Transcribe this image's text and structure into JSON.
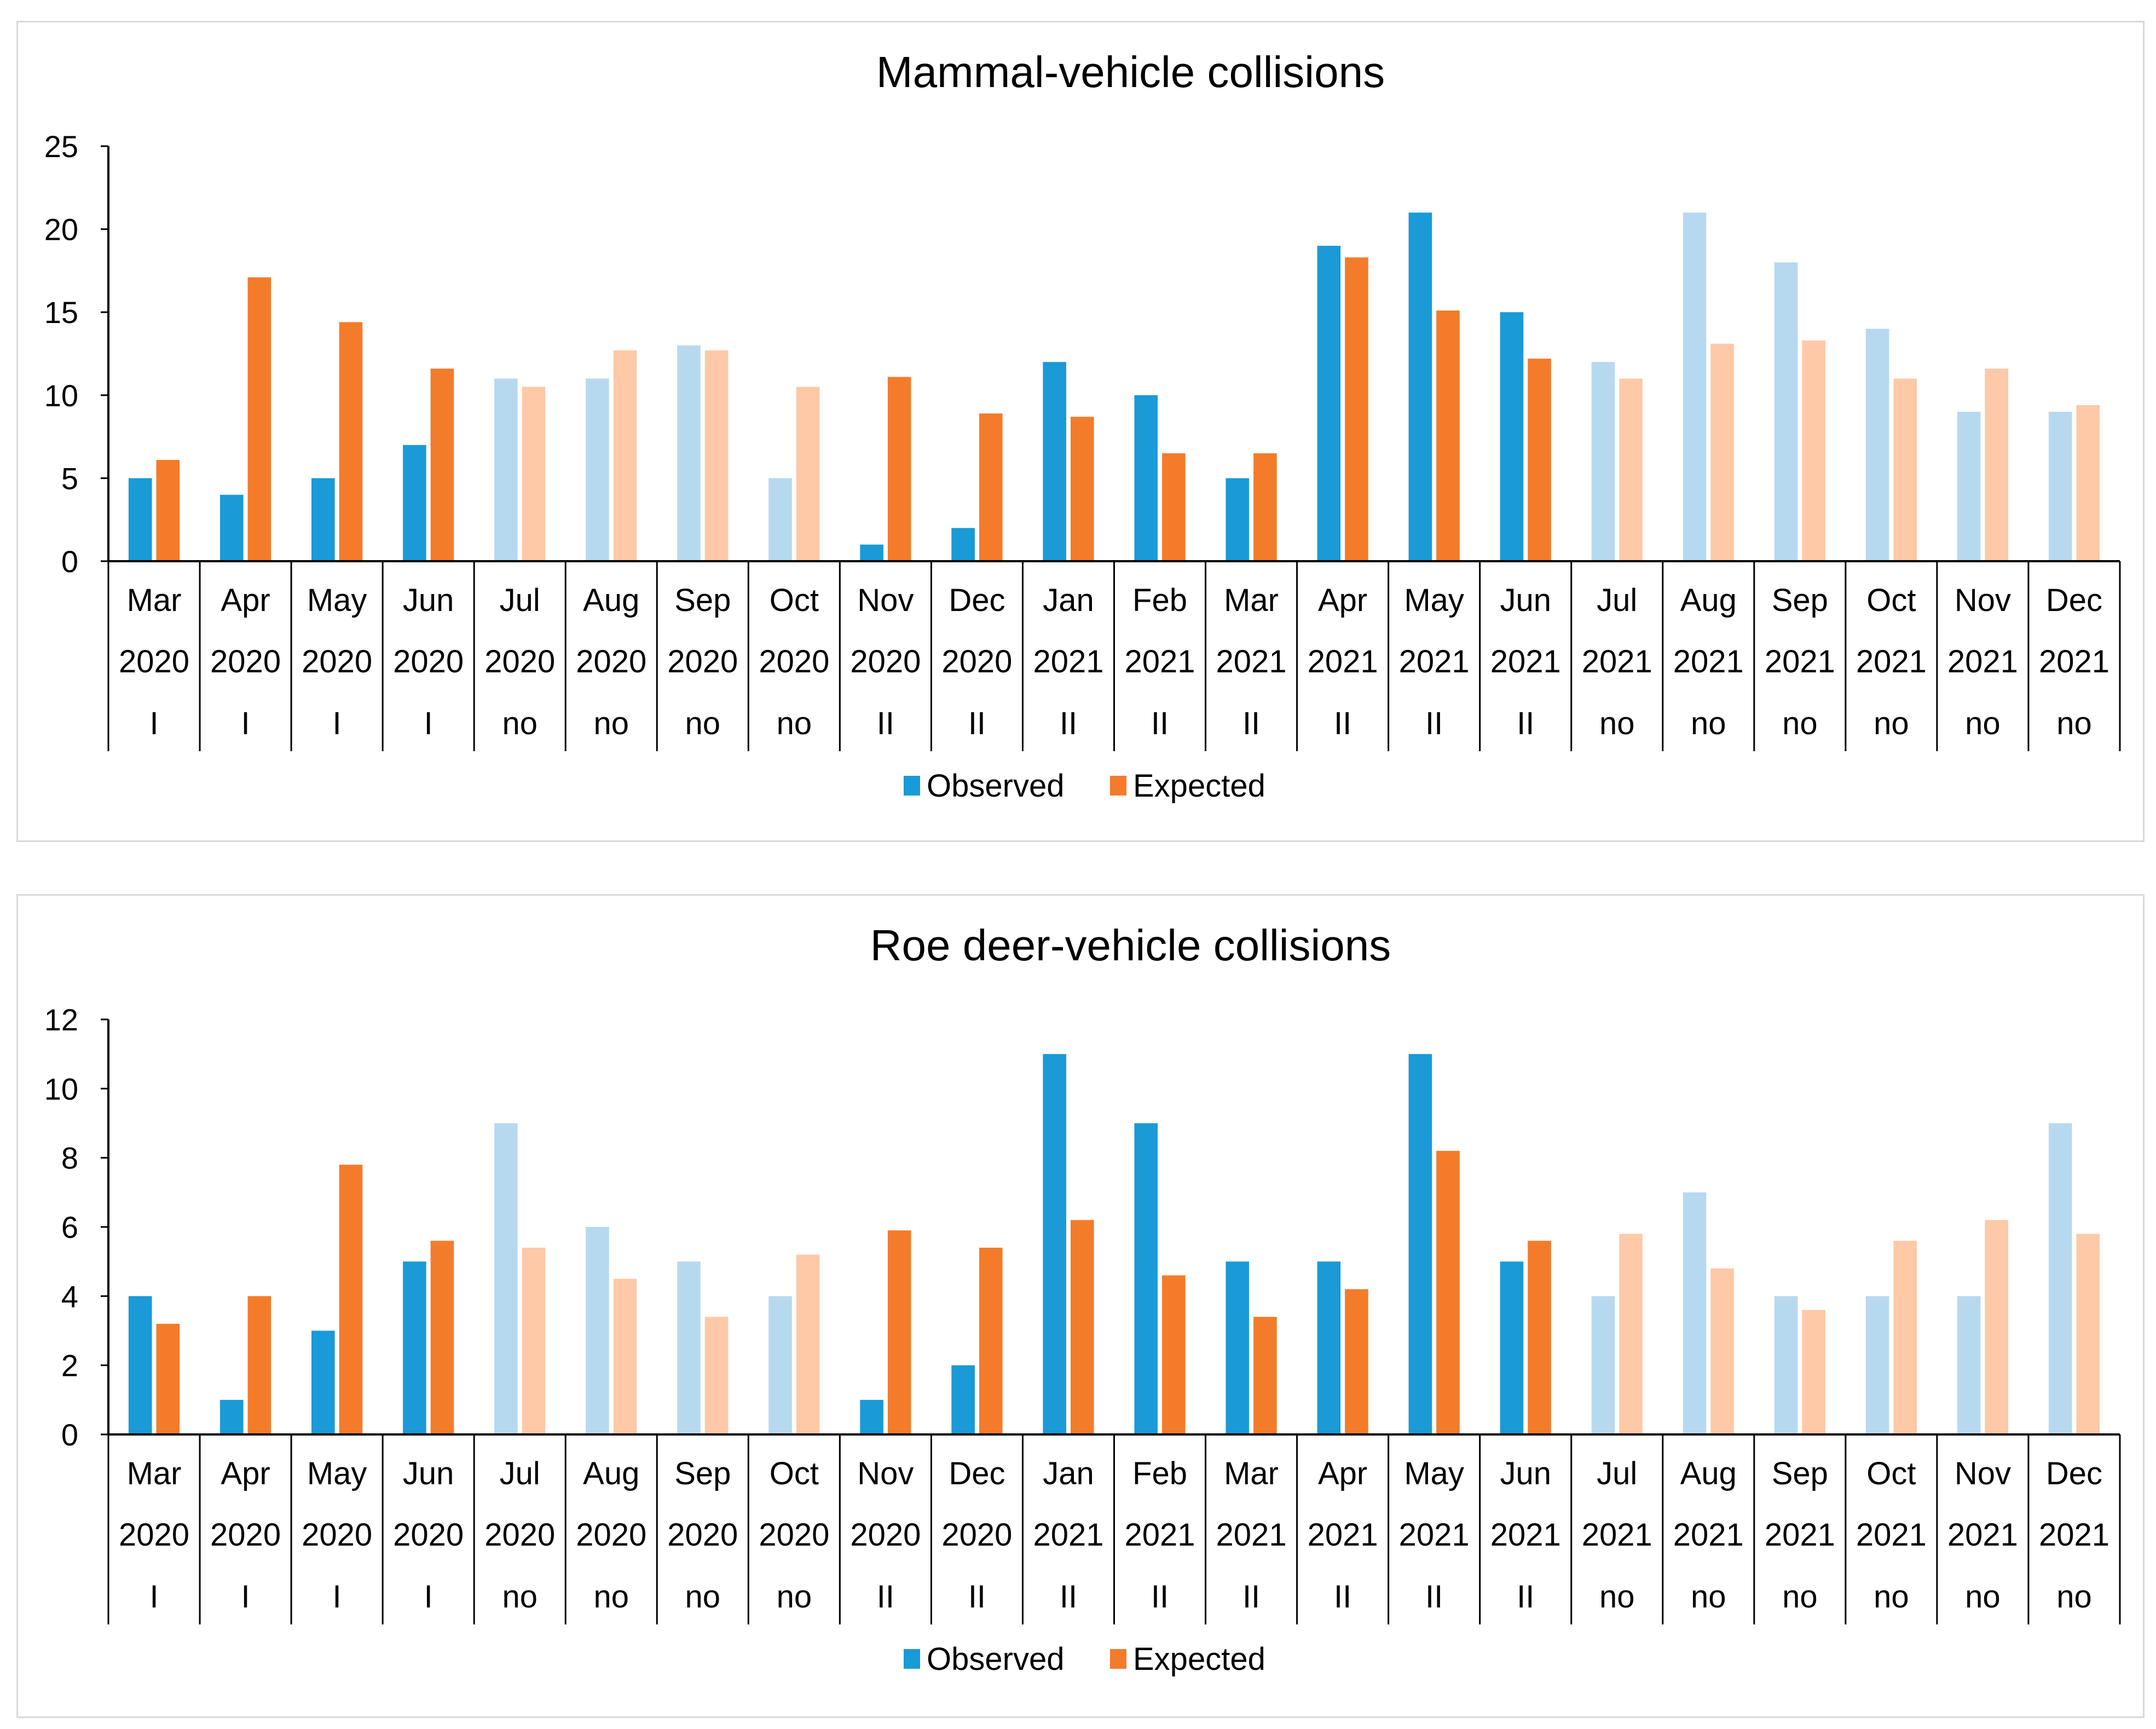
{
  "chart_data": [
    {
      "type": "bar",
      "title": "Mammal-vehicle collisions",
      "xlabel": "",
      "ylabel": "",
      "ylim": [
        0,
        25
      ],
      "yticks": [
        0,
        5,
        10,
        15,
        20,
        25
      ],
      "yticks_text": [
        "0",
        "5",
        "10",
        "15",
        "20",
        "25"
      ],
      "grid": false,
      "legend_position": "bottom",
      "months": [
        "Mar",
        "Apr",
        "May",
        "Jun",
        "Jul",
        "Aug",
        "Sep",
        "Oct",
        "Nov",
        "Dec",
        "Jan",
        "Feb",
        "Mar",
        "Apr",
        "May",
        "Jun",
        "Jul",
        "Aug",
        "Sep",
        "Oct",
        "Nov",
        "Dec"
      ],
      "years": [
        "2020",
        "2020",
        "2020",
        "2020",
        "2020",
        "2020",
        "2020",
        "2020",
        "2020",
        "2020",
        "2021",
        "2021",
        "2021",
        "2021",
        "2021",
        "2021",
        "2021",
        "2021",
        "2021",
        "2021",
        "2021",
        "2021"
      ],
      "lockdown": [
        "I",
        "I",
        "I",
        "I",
        "no",
        "no",
        "no",
        "no",
        "II",
        "II",
        "II",
        "II",
        "II",
        "II",
        "II",
        "II",
        "no",
        "no",
        "no",
        "no",
        "no",
        "no"
      ],
      "series": [
        {
          "name": "Observed",
          "values": [
            5,
            4,
            5,
            7,
            11,
            11,
            13,
            5,
            1,
            2,
            12,
            10,
            5,
            19,
            21,
            15,
            12,
            21,
            18,
            14,
            9,
            9
          ]
        },
        {
          "name": "Expected",
          "values": [
            6.1,
            17.1,
            14.4,
            11.6,
            10.5,
            12.7,
            12.7,
            10.5,
            11.1,
            8.9,
            8.7,
            6.5,
            6.5,
            18.3,
            15.1,
            12.2,
            11.0,
            13.1,
            13.3,
            11.0,
            11.6,
            9.4
          ]
        }
      ]
    },
    {
      "type": "bar",
      "title": "Roe deer-vehicle collisions",
      "xlabel": "",
      "ylabel": "",
      "ylim": [
        0,
        12
      ],
      "yticks": [
        0,
        2,
        4,
        6,
        8,
        10,
        12
      ],
      "yticks_text": [
        "0",
        "2",
        "4",
        "6",
        "8",
        "10",
        "12"
      ],
      "grid": false,
      "legend_position": "bottom",
      "months": [
        "Mar",
        "Apr",
        "May",
        "Jun",
        "Jul",
        "Aug",
        "Sep",
        "Oct",
        "Nov",
        "Dec",
        "Jan",
        "Feb",
        "Mar",
        "Apr",
        "May",
        "Jun",
        "Jul",
        "Aug",
        "Sep",
        "Oct",
        "Nov",
        "Dec"
      ],
      "years": [
        "2020",
        "2020",
        "2020",
        "2020",
        "2020",
        "2020",
        "2020",
        "2020",
        "2020",
        "2020",
        "2021",
        "2021",
        "2021",
        "2021",
        "2021",
        "2021",
        "2021",
        "2021",
        "2021",
        "2021",
        "2021",
        "2021"
      ],
      "lockdown": [
        "I",
        "I",
        "I",
        "I",
        "no",
        "no",
        "no",
        "no",
        "II",
        "II",
        "II",
        "II",
        "II",
        "II",
        "II",
        "II",
        "no",
        "no",
        "no",
        "no",
        "no",
        "no"
      ],
      "series": [
        {
          "name": "Observed",
          "values": [
            4,
            1,
            3,
            5,
            9,
            6,
            5,
            4,
            1,
            2,
            11,
            9,
            5,
            5,
            11,
            5,
            4,
            7,
            4,
            4,
            4,
            9
          ]
        },
        {
          "name": "Expected",
          "values": [
            3.2,
            4.0,
            7.8,
            5.6,
            5.4,
            4.5,
            3.4,
            5.2,
            5.9,
            5.4,
            6.2,
            4.6,
            3.4,
            4.2,
            8.2,
            5.6,
            5.8,
            4.8,
            3.6,
            5.6,
            6.2,
            5.8
          ]
        }
      ]
    }
  ],
  "colors": {
    "observed_lockdown": "#1a9ad6",
    "expected_lockdown": "#f47b2a",
    "observed_no_lockdown": "#b7d9ef",
    "expected_no_lockdown": "#fdc9a7",
    "axis": "#000000",
    "panel_border": "#d9d9d9"
  }
}
